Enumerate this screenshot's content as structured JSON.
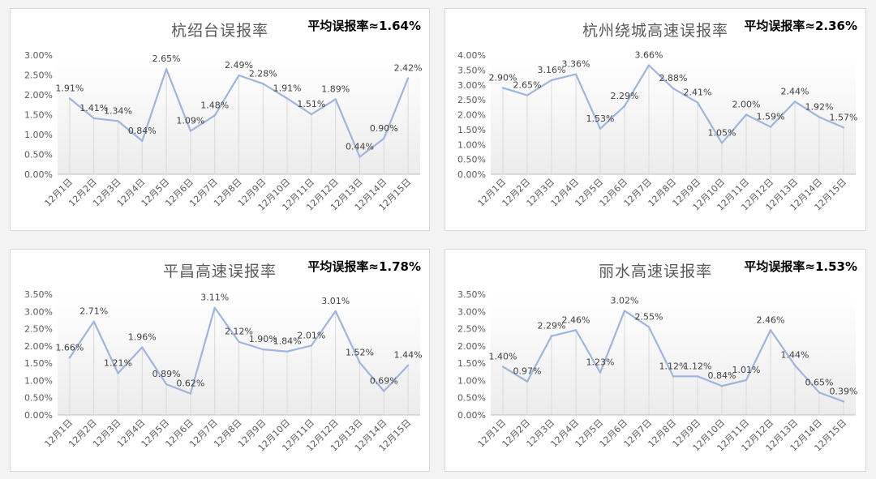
{
  "colors": {
    "line": "#9db5df",
    "grid": "#d9d9d9",
    "fill_top": "#ececec"
  },
  "chart_data": [
    {
      "type": "line",
      "title": "杭绍台误报率",
      "annotation": "平均误报率≈1.64%",
      "categories": [
        "12月1日",
        "12月2日",
        "12月3日",
        "12月4日",
        "12月5日",
        "12月6日",
        "12月7日",
        "12月8日",
        "12月9日",
        "12月10日",
        "12月11日",
        "12月12日",
        "12月13日",
        "12月14日",
        "12月15日"
      ],
      "values": [
        1.91,
        1.41,
        1.34,
        0.84,
        2.65,
        1.09,
        1.48,
        2.49,
        2.28,
        1.91,
        1.51,
        1.89,
        0.44,
        0.9,
        2.42
      ],
      "labels": [
        "1.91%",
        "1.41%",
        "1.34%",
        "0.84%",
        "2.65%",
        "1.09%",
        "1.48%",
        "2.49%",
        "2.28%",
        "1.91%",
        "1.51%",
        "1.89%",
        "0.44%",
        "0.90%",
        "2.42%"
      ],
      "yticks": [
        "0.00%",
        "0.50%",
        "1.00%",
        "1.50%",
        "2.00%",
        "2.50%",
        "3.00%"
      ],
      "ylim": [
        0,
        3
      ]
    },
    {
      "type": "line",
      "title": "杭州绕城高速误报率",
      "annotation": "平均误报率≈2.36%",
      "categories": [
        "12月1日",
        "12月2日",
        "12月3日",
        "12月4日",
        "12月5日",
        "12月6日",
        "12月7日",
        "12月8日",
        "12月9日",
        "12月10日",
        "12月11日",
        "12月12日",
        "12月13日",
        "12月14日",
        "12月15日"
      ],
      "values": [
        2.9,
        2.65,
        3.16,
        3.36,
        1.53,
        2.29,
        3.66,
        2.88,
        2.41,
        1.05,
        2.0,
        1.59,
        2.44,
        1.92,
        1.57
      ],
      "labels": [
        "2.90%",
        "2.65%",
        "3.16%",
        "3.36%",
        "1.53%",
        "2.29%",
        "3.66%",
        "2.88%",
        "2.41%",
        "1.05%",
        "2.00%",
        "1.59%",
        "2.44%",
        "1.92%",
        "1.57%"
      ],
      "yticks": [
        "0.00%",
        "0.50%",
        "1.00%",
        "1.50%",
        "2.00%",
        "2.50%",
        "3.00%",
        "3.50%",
        "4.00%"
      ],
      "ylim": [
        0,
        4
      ]
    },
    {
      "type": "line",
      "title": "平昌高速误报率",
      "annotation": "平均误报率≈1.78%",
      "categories": [
        "12月1日",
        "12月2日",
        "12月3日",
        "12月4日",
        "12月5日",
        "12月6日",
        "12月7日",
        "12月8日",
        "12月9日",
        "12月10日",
        "12月11日",
        "12月12日",
        "12月13日",
        "12月14日",
        "12月15日"
      ],
      "values": [
        1.66,
        2.71,
        1.21,
        1.96,
        0.89,
        0.62,
        3.11,
        2.12,
        1.9,
        1.84,
        2.01,
        3.01,
        1.52,
        0.69,
        1.44
      ],
      "labels": [
        "1.66%",
        "2.71%",
        "1.21%",
        "1.96%",
        "0.89%",
        "0.62%",
        "3.11%",
        "2.12%",
        "1.90%",
        "1.84%",
        "2.01%",
        "3.01%",
        "1.52%",
        "0.69%",
        "1.44%"
      ],
      "yticks": [
        "0.00%",
        "0.50%",
        "1.00%",
        "1.50%",
        "2.00%",
        "2.50%",
        "3.00%",
        "3.50%"
      ],
      "ylim": [
        0,
        3.5
      ]
    },
    {
      "type": "line",
      "title": "丽水高速误报率",
      "annotation": "平均误报率≈1.53%",
      "categories": [
        "12月1日",
        "12月2日",
        "12月3日",
        "12月4日",
        "12月5日",
        "12月6日",
        "12月7日",
        "12月8日",
        "12月9日",
        "12月10日",
        "12月11日",
        "12月12日",
        "12月13日",
        "12月14日",
        "12月15日"
      ],
      "values": [
        1.4,
        0.97,
        2.29,
        2.46,
        1.23,
        3.02,
        2.55,
        1.12,
        1.12,
        0.84,
        1.01,
        2.46,
        1.44,
        0.65,
        0.39
      ],
      "labels": [
        "1.40%",
        "0.97%",
        "2.29%",
        "2.46%",
        "1.23%",
        "3.02%",
        "2.55%",
        "1.12%",
        "1.12%",
        "0.84%",
        "1.01%",
        "2.46%",
        "1.44%",
        "0.65%",
        "0.39%"
      ],
      "yticks": [
        "0.00%",
        "0.50%",
        "1.00%",
        "1.50%",
        "2.00%",
        "2.50%",
        "3.00%",
        "3.50%"
      ],
      "ylim": [
        0,
        3.5
      ]
    }
  ]
}
